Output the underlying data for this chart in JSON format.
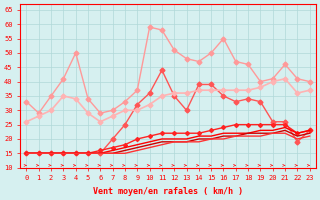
{
  "xlabel": "Vent moyen/en rafales ( km/h )",
  "background_color": "#d6f0f0",
  "grid_color": "#b0d8d8",
  "x_values": [
    0,
    1,
    2,
    3,
    4,
    5,
    6,
    7,
    8,
    9,
    10,
    11,
    12,
    13,
    14,
    15,
    16,
    17,
    18,
    19,
    20,
    21,
    22,
    23
  ],
  "ylim": [
    10,
    67
  ],
  "yticks": [
    10,
    15,
    20,
    25,
    30,
    35,
    40,
    45,
    50,
    55,
    60,
    65
  ],
  "lines": [
    {
      "color": "#ff9999",
      "lw": 1.0,
      "marker": "D",
      "ms": 2.5,
      "data": [
        33,
        29,
        35,
        41,
        50,
        34,
        29,
        30,
        33,
        37,
        59,
        58,
        51,
        48,
        47,
        50,
        55,
        47,
        46,
        40,
        41,
        46,
        41,
        40
      ]
    },
    {
      "color": "#ff5555",
      "lw": 1.0,
      "marker": "D",
      "ms": 2.5,
      "data": [
        15,
        15,
        15,
        15,
        15,
        15,
        15,
        20,
        25,
        32,
        36,
        44,
        35,
        30,
        39,
        39,
        35,
        33,
        34,
        33,
        26,
        26,
        19,
        23
      ]
    },
    {
      "color": "#ffb3b3",
      "lw": 1.2,
      "marker": "D",
      "ms": 2.5,
      "data": [
        26,
        28,
        30,
        35,
        34,
        29,
        26,
        28,
        30,
        30,
        32,
        35,
        36,
        36,
        37,
        37,
        37,
        37,
        37,
        38,
        40,
        41,
        36,
        37
      ]
    },
    {
      "color": "#ff2222",
      "lw": 1.0,
      "marker": "D",
      "ms": 2.0,
      "data": [
        15,
        15,
        15,
        15,
        15,
        15,
        16,
        17,
        18,
        20,
        21,
        22,
        22,
        22,
        22,
        23,
        24,
        25,
        25,
        25,
        25,
        25,
        22,
        23
      ]
    },
    {
      "color": "#ff0000",
      "lw": 1.0,
      "marker": "",
      "ms": 0,
      "data": [
        15,
        15,
        15,
        15,
        15,
        15,
        15,
        16,
        17,
        18,
        19,
        20,
        20,
        20,
        21,
        21,
        22,
        22,
        22,
        23,
        23,
        24,
        22,
        23
      ]
    },
    {
      "color": "#cc0000",
      "lw": 1.0,
      "marker": "",
      "ms": 0,
      "data": [
        15,
        15,
        15,
        15,
        15,
        15,
        15,
        15,
        16,
        17,
        18,
        19,
        19,
        19,
        20,
        20,
        21,
        21,
        22,
        22,
        22,
        23,
        21,
        22
      ]
    },
    {
      "color": "#ff3333",
      "lw": 1.0,
      "marker": "",
      "ms": 0,
      "data": [
        15,
        15,
        15,
        15,
        15,
        15,
        15,
        15,
        15,
        16,
        17,
        18,
        19,
        19,
        19,
        20,
        20,
        21,
        21,
        21,
        22,
        22,
        20,
        21
      ]
    }
  ],
  "accent_color": "#ff0000",
  "axis_fontsize": 6,
  "tick_fontsize": 5
}
